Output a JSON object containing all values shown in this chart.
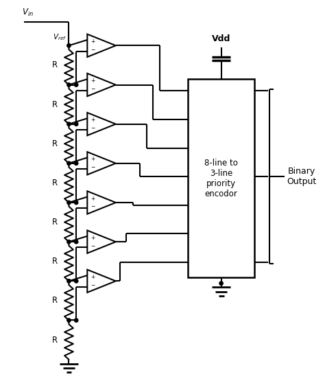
{
  "bg_color": "#ffffff",
  "line_color": "#000000",
  "lw": 1.5,
  "fig_w": 4.74,
  "fig_h": 5.68,
  "encoder_label": "8-line to\n3-line\npriority\nencodor",
  "binary_label": "Binary\nOutput",
  "R_label": "R",
  "vdd_label": "Vdd",
  "num_comparators": 7,
  "num_resistors": 8
}
